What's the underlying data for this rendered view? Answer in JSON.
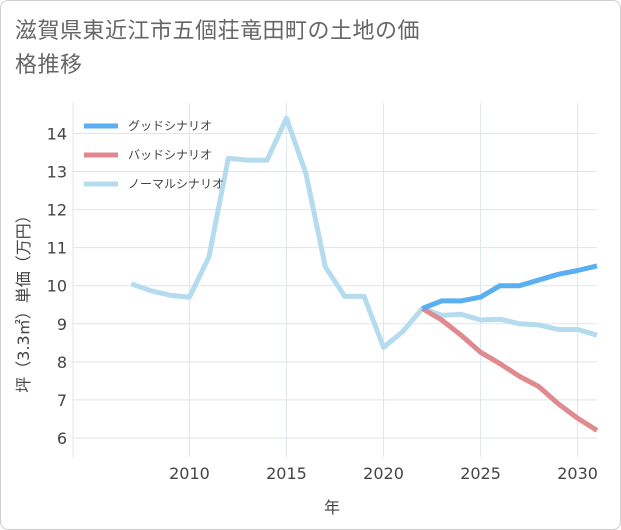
{
  "title": "滋賀県東近江市五個荘竜田町の土地の価格推移",
  "chart_data": {
    "type": "line",
    "title": "滋賀県東近江市五個荘竜田町の土地の価格推移",
    "xlabel": "年",
    "ylabel": "坪（3.3㎡）単価（万円）",
    "xlim": [
      2004,
      2031
    ],
    "ylim": [
      5.5,
      14.8
    ],
    "xticks": [
      2010,
      2015,
      2020,
      2025,
      2030
    ],
    "yticks": [
      6,
      7,
      8,
      9,
      10,
      11,
      12,
      13,
      14
    ],
    "grid": true,
    "legend_position": "top-left",
    "series": [
      {
        "name": "グッドシナリオ",
        "color": "#5aaff0",
        "x": [
          2022,
          2023,
          2024,
          2025,
          2026,
          2027,
          2028,
          2029,
          2030,
          2031
        ],
        "y": [
          9.4,
          9.6,
          9.6,
          9.7,
          10.0,
          10.0,
          10.15,
          10.3,
          10.4,
          10.52
        ]
      },
      {
        "name": "バッドシナリオ",
        "color": "#e08a8f",
        "x": [
          2022,
          2023,
          2024,
          2025,
          2026,
          2027,
          2028,
          2029,
          2030,
          2031
        ],
        "y": [
          9.4,
          9.1,
          8.7,
          8.25,
          7.95,
          7.62,
          7.35,
          6.9,
          6.52,
          6.2
        ]
      },
      {
        "name": "ノーマルシナリオ",
        "color": "#b5dcee",
        "x": [
          2007,
          2008,
          2009,
          2010,
          2011,
          2012,
          2013,
          2014,
          2015,
          2016,
          2017,
          2018,
          2019,
          2020,
          2021,
          2022,
          2023,
          2024,
          2025,
          2026,
          2027,
          2028,
          2029,
          2030,
          2031
        ],
        "y": [
          10.05,
          9.87,
          9.75,
          9.7,
          10.75,
          13.35,
          13.3,
          13.3,
          14.4,
          12.95,
          10.5,
          9.72,
          9.72,
          8.38,
          8.8,
          9.4,
          9.22,
          9.25,
          9.1,
          9.12,
          9.0,
          8.97,
          8.85,
          8.85,
          8.7
        ]
      }
    ]
  }
}
